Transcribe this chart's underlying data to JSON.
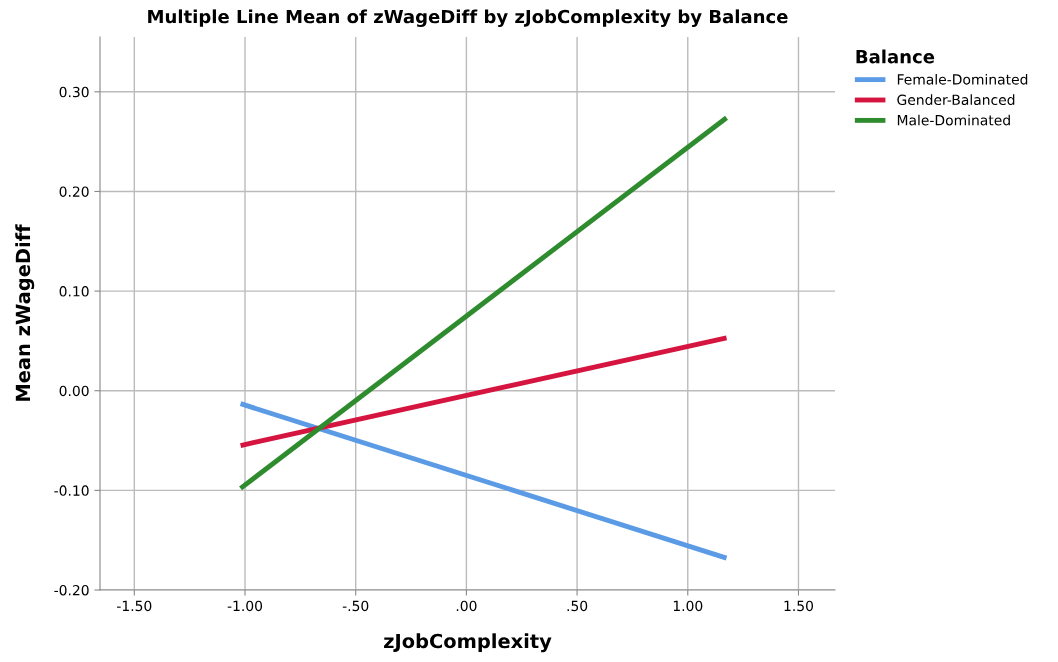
{
  "chart_data": {
    "type": "line",
    "title": "Multiple Line Mean of zWageDiff by zJobComplexity by Balance",
    "xlabel": "zJobComplexity",
    "ylabel": "Mean zWageDiff",
    "legend_title": "Balance",
    "x": [
      -1.02,
      1.175
    ],
    "series": [
      {
        "name": "Female-Dominated",
        "color": "#5b9be6",
        "values": [
          -0.013,
          -0.168
        ]
      },
      {
        "name": "Gender-Balanced",
        "color": "#d5143f",
        "values": [
          -0.055,
          0.053
        ]
      },
      {
        "name": "Male-Dominated",
        "color": "#2e8b2e",
        "values": [
          -0.098,
          0.274
        ]
      }
    ],
    "xlim": [
      -1.655,
      1.665
    ],
    "ylim": [
      -0.2,
      0.355
    ],
    "xticks": [
      {
        "value": -1.5,
        "label": "-1.50"
      },
      {
        "value": -1.0,
        "label": "-1.00"
      },
      {
        "value": -0.5,
        "label": "-.50"
      },
      {
        "value": 0,
        "label": ".00"
      },
      {
        "value": 0.5,
        "label": ".50"
      },
      {
        "value": 1.0,
        "label": "1.00"
      },
      {
        "value": 1.5,
        "label": "1.50"
      }
    ],
    "yticks": [
      {
        "value": -0.2,
        "label": "-0.20"
      },
      {
        "value": -0.1,
        "label": "-0.10"
      },
      {
        "value": 0,
        "label": "0.00"
      },
      {
        "value": 0.1,
        "label": "0.10"
      },
      {
        "value": 0.2,
        "label": "0.20"
      },
      {
        "value": 0.3,
        "label": "0.30"
      }
    ],
    "grid": true,
    "legend": "right",
    "marker": "none",
    "line_style": "solid"
  }
}
